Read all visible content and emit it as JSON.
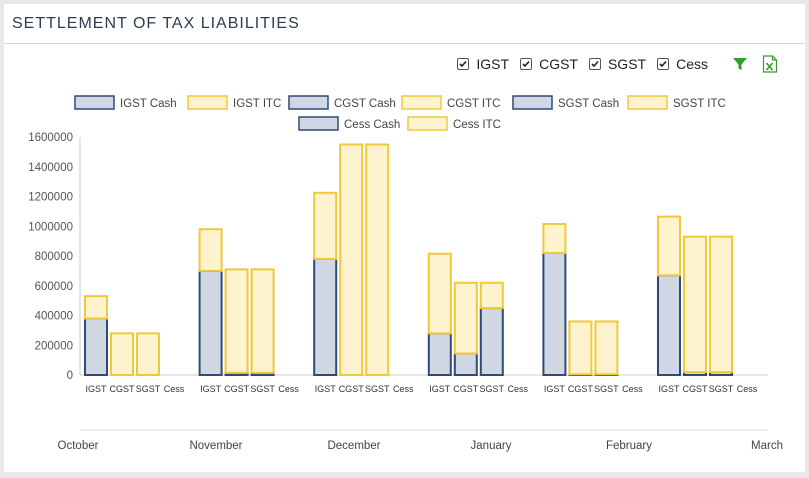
{
  "header": {
    "title": "SETTLEMENT OF TAX LIABILITIES"
  },
  "filters": [
    {
      "label": "IGST",
      "checked": true
    },
    {
      "label": "CGST",
      "checked": true
    },
    {
      "label": "SGST",
      "checked": true
    },
    {
      "label": "Cess",
      "checked": true
    }
  ],
  "toolbar": {
    "filter_icon": "funnel-icon",
    "export_icon": "excel-export-icon"
  },
  "colors": {
    "cash_fill": "#d0d6e2",
    "cash_stroke": "#2e4a78",
    "itc_fill": "#fdf4cf",
    "itc_stroke": "#f0c838"
  },
  "chart_data": {
    "type": "bar",
    "stacked": true,
    "grouped": true,
    "ylim": [
      0,
      1600000
    ],
    "yticks": [
      0,
      200000,
      400000,
      600000,
      800000,
      1000000,
      1200000,
      1400000,
      1600000
    ],
    "grid": false,
    "legend_position": "top-center",
    "sub_categories": [
      "IGST",
      "CGST",
      "SGST",
      "Cess"
    ],
    "months": [
      "October",
      "November",
      "December",
      "January",
      "February",
      "March"
    ],
    "legend": [
      {
        "label": "IGST Cash",
        "kind": "cash"
      },
      {
        "label": "IGST ITC",
        "kind": "itc"
      },
      {
        "label": "CGST Cash",
        "kind": "cash"
      },
      {
        "label": "CGST ITC",
        "kind": "itc"
      },
      {
        "label": "SGST Cash",
        "kind": "cash"
      },
      {
        "label": "SGST ITC",
        "kind": "itc"
      },
      {
        "label": "Cess Cash",
        "kind": "cash"
      },
      {
        "label": "Cess ITC",
        "kind": "itc"
      }
    ],
    "groups": [
      {
        "month": "October",
        "IGST": {
          "cash": 380000,
          "itc": 150000
        },
        "CGST": {
          "cash": 0,
          "itc": 280000
        },
        "SGST": {
          "cash": 0,
          "itc": 280000
        },
        "Cess": {
          "cash": 0,
          "itc": 0
        }
      },
      {
        "month": "November",
        "IGST": {
          "cash": 700000,
          "itc": 280000
        },
        "CGST": {
          "cash": 15000,
          "itc": 695000
        },
        "SGST": {
          "cash": 15000,
          "itc": 695000
        },
        "Cess": {
          "cash": 0,
          "itc": 0
        }
      },
      {
        "month": "December",
        "IGST": {
          "cash": 780000,
          "itc": 445000
        },
        "CGST": {
          "cash": 0,
          "itc": 1550000
        },
        "SGST": {
          "cash": 0,
          "itc": 1550000
        },
        "Cess": {
          "cash": 0,
          "itc": 0
        }
      },
      {
        "month": "January",
        "IGST": {
          "cash": 280000,
          "itc": 535000
        },
        "CGST": {
          "cash": 145000,
          "itc": 475000
        },
        "SGST": {
          "cash": 450000,
          "itc": 170000
        },
        "Cess": {
          "cash": 0,
          "itc": 0
        }
      },
      {
        "month": "February",
        "IGST": {
          "cash": 820000,
          "itc": 195000
        },
        "CGST": {
          "cash": 5000,
          "itc": 355000
        },
        "SGST": {
          "cash": 5000,
          "itc": 355000
        },
        "Cess": {
          "cash": 0,
          "itc": 0
        }
      },
      {
        "month": "March",
        "IGST": {
          "cash": 670000,
          "itc": 395000
        },
        "CGST": {
          "cash": 20000,
          "itc": 910000
        },
        "SGST": {
          "cash": 20000,
          "itc": 910000
        },
        "Cess": {
          "cash": 0,
          "itc": 0
        }
      }
    ]
  }
}
